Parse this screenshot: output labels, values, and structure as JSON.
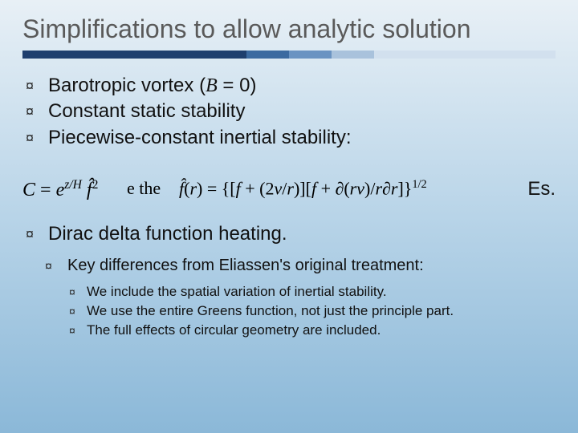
{
  "title": "Simplifications to allow analytic solution",
  "title_color": "#5a5a5a",
  "title_fontsize": 32,
  "rule_segments": [
    {
      "color": "#1f3f6e",
      "width_pct": 42
    },
    {
      "color": "#3c6aa0",
      "width_pct": 8
    },
    {
      "color": "#6a93c2",
      "width_pct": 8
    },
    {
      "color": "#a9c2dc",
      "width_pct": 8
    },
    {
      "color": "#d2e0ee",
      "width_pct": 34
    }
  ],
  "bullets": [
    "Barotropic vortex (B = 0)",
    "Constant static stability",
    "Piecewise-constant inertial stability:"
  ],
  "bullet_glyph": "¤",
  "bullet_fontsize": 24,
  "formula": {
    "C_expr_lhs": "C = e",
    "C_expr_sup": "z/H",
    "C_expr_after": " f̂ ²",
    "mid_text": "e the",
    "fhat_expr": "f̂(r) = {[f + (2v/r)][f + ∂(rv)/r∂r]}",
    "fhat_sup": "1/2",
    "tail": "Es.",
    "font_family": "Times New Roman",
    "fontsize": 24
  },
  "dirac_bullet": "Dirac delta function heating.",
  "minor_title": "Key differences from Eliassen's original treatment:",
  "minor_fontsize": 20,
  "sub_bullets": [
    "We include the spatial variation of inertial stability.",
    "We use the entire Greens function, not just the principle part.",
    "The full effects of circular geometry are included."
  ],
  "sub_fontsize": 17,
  "background_gradient": [
    "#e8f0f6",
    "#b8d4e8",
    "#8bb8d8"
  ],
  "B_italic": "B"
}
